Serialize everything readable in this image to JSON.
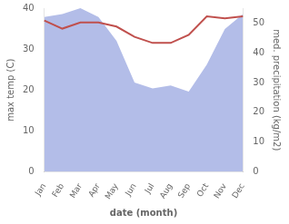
{
  "chart_data": {
    "type": "line",
    "xlabel": "date (month)",
    "ylabel": "max temp (C)",
    "y2label": "med. precipitation (kg/m2)",
    "categories": [
      "Jan",
      "Feb",
      "Mar",
      "Apr",
      "May",
      "Jun",
      "Jul",
      "Aug",
      "Sep",
      "Oct",
      "Nov",
      "Dec"
    ],
    "series": [
      {
        "type": "area",
        "color": "#b3bde8",
        "axis": "y2",
        "values": [
          52.0,
          53.0,
          55.0,
          52.0,
          44.0,
          30.0,
          28.0,
          29.0,
          27.0,
          36.0,
          48.0,
          53.0
        ]
      },
      {
        "type": "line",
        "color": "#c0504d",
        "values": [
          37.0,
          35.0,
          36.5,
          36.5,
          35.5,
          33.0,
          31.5,
          31.5,
          33.5,
          38.0,
          37.5,
          38.0
        ]
      }
    ],
    "ylim": [
      0,
      40
    ],
    "yticks": [
      0,
      10,
      20,
      30,
      40
    ],
    "y2lim": [
      0,
      55
    ],
    "y2ticks": [
      0,
      10,
      20,
      30,
      40,
      50
    ],
    "grid": false
  }
}
